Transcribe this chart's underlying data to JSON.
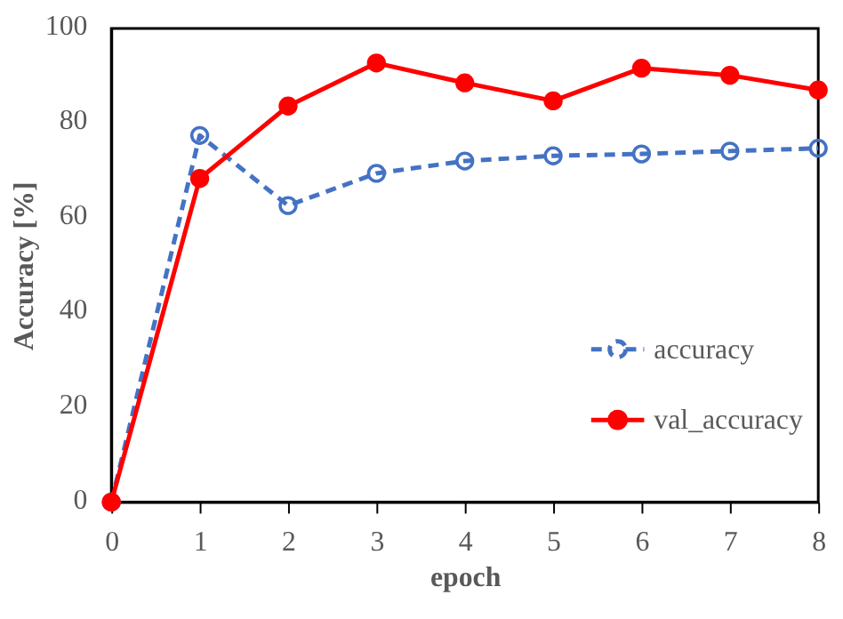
{
  "chart_data": {
    "type": "line",
    "xlabel": "epoch",
    "ylabel": "Accuracy [%]",
    "x": [
      0,
      1,
      2,
      3,
      4,
      5,
      6,
      7,
      8
    ],
    "series": [
      {
        "name": "accuracy",
        "color": "#4472c4",
        "line_style": "dashed",
        "marker": "circle",
        "values": [
          0,
          77.4,
          62.6,
          69.4,
          72,
          73.1,
          73.5,
          74.1,
          74.7
        ]
      },
      {
        "name": "val_accuracy",
        "color": "#ff0000",
        "line_style": "solid",
        "marker": "circle",
        "values": [
          0,
          68.3,
          83.6,
          92.7,
          88.5,
          84.7,
          91.6,
          90.1,
          87
        ]
      }
    ],
    "xlim": [
      0,
      8
    ],
    "xticks": [
      0,
      1,
      2,
      3,
      4,
      5,
      6,
      7,
      8
    ],
    "ylim": [
      0,
      100
    ],
    "yticks": [
      0,
      20,
      40,
      60,
      80,
      100
    ],
    "grid": false,
    "legend": "right"
  }
}
